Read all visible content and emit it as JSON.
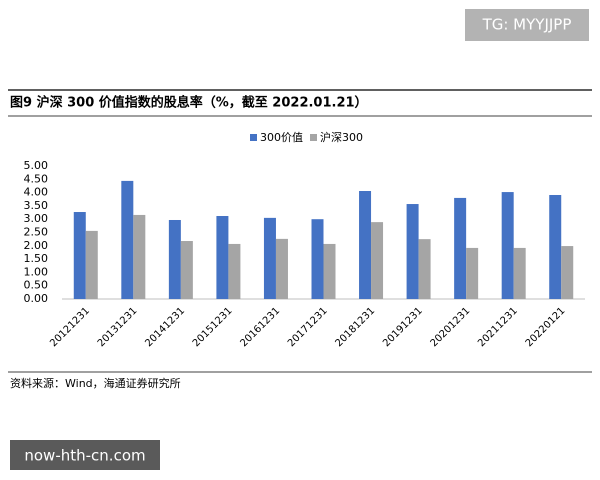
{
  "chart_data": {
    "type": "bar",
    "title": "图9  沪深 300 价值指数的股息率（%，截至 2022.01.21）",
    "categories": [
      "20121231",
      "20131231",
      "20141231",
      "20151231",
      "20161231",
      "20171231",
      "20181231",
      "20191231",
      "20201231",
      "20211231",
      "20220121"
    ],
    "series": [
      {
        "name": "300价值",
        "color": "#4472c4",
        "values": [
          3.27,
          4.44,
          2.97,
          3.12,
          3.05,
          3.0,
          4.06,
          3.57,
          3.8,
          4.02,
          3.91
        ]
      },
      {
        "name": "沪深300",
        "color": "#a5a5a5",
        "values": [
          2.56,
          3.16,
          2.18,
          2.07,
          2.26,
          2.07,
          2.89,
          2.25,
          1.92,
          1.92,
          1.99
        ]
      }
    ],
    "ylim": [
      0,
      5
    ],
    "yticks": [
      {
        "value": 0,
        "label": "0.00"
      },
      {
        "value": 0.5,
        "label": "0.50"
      },
      {
        "value": 1,
        "label": "1.00"
      },
      {
        "value": 1.5,
        "label": "1.50"
      },
      {
        "value": 2,
        "label": "2.00"
      },
      {
        "value": 2.5,
        "label": "2.50"
      },
      {
        "value": 3,
        "label": "3.00"
      },
      {
        "value": 3.5,
        "label": "3.50"
      },
      {
        "value": 4,
        "label": "4.00"
      },
      {
        "value": 4.5,
        "label": "4.50"
      },
      {
        "value": 5,
        "label": "5.00"
      }
    ],
    "grid": false,
    "legend": "top",
    "source": "资料来源：Wind，海通证券研究所"
  },
  "watermark_top": "TG: MYYJJPP",
  "watermark_bottom": "now-hth-cn.com"
}
